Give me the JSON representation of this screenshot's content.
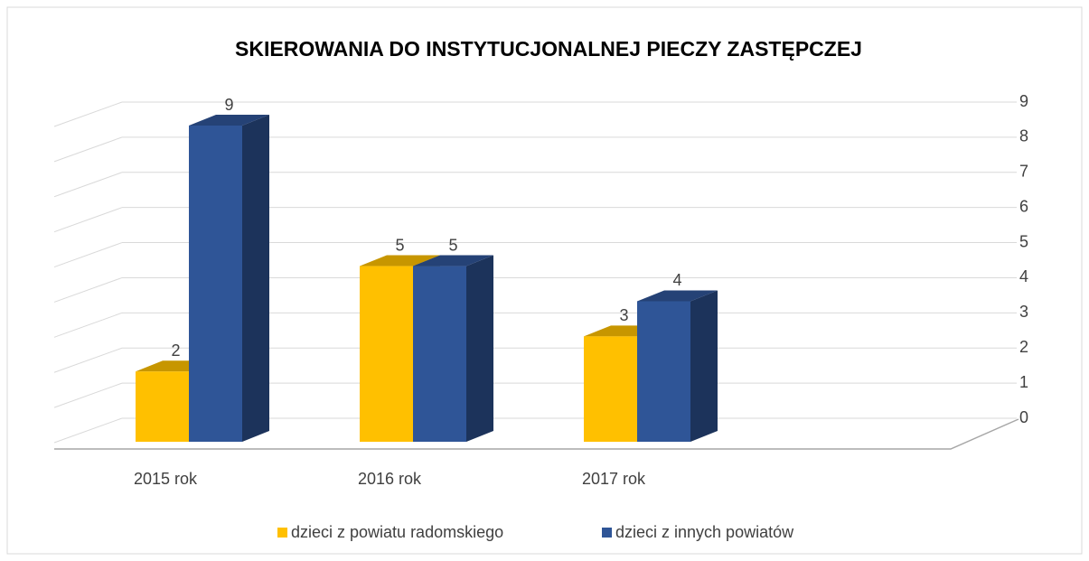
{
  "chart_data": {
    "type": "bar3d",
    "title": "SKIEROWANIA DO INSTYTUCJONALNEJ PIECZY ZASTĘPCZEJ",
    "categories": [
      "2015 rok",
      "2016 rok",
      "2017 rok"
    ],
    "series": [
      {
        "name": "dzieci z powiatu radomskiego",
        "color": "#ffc000",
        "values": [
          2,
          5,
          3
        ]
      },
      {
        "name": "dzieci z innych powiatów",
        "color": "#2f5597",
        "values": [
          9,
          5,
          4
        ]
      }
    ],
    "ylim": [
      0,
      9
    ],
    "yticks": [
      0,
      1,
      2,
      3,
      4,
      5,
      6,
      7,
      8,
      9
    ],
    "grid": true,
    "legend": "bottom"
  }
}
